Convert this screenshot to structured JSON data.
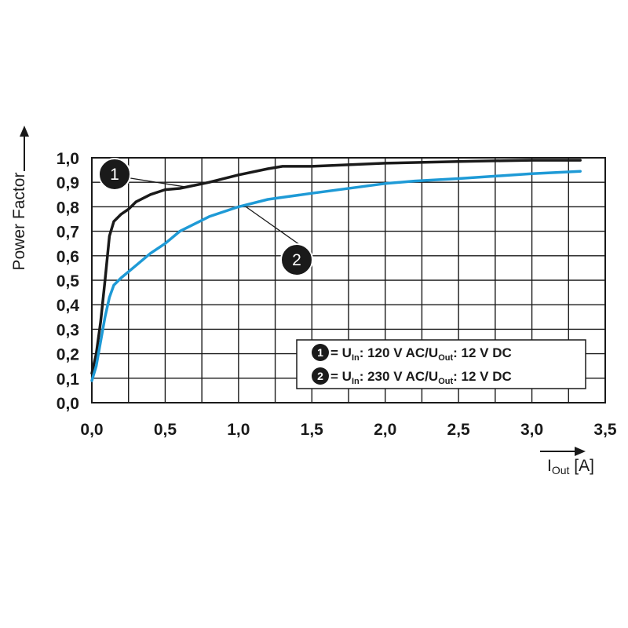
{
  "chart_data": {
    "type": "line",
    "ylabel": "Power Factor",
    "xlabel_main": "I",
    "xlabel_sub": "Out",
    "xlabel_unit": " [A]",
    "xlim": [
      0,
      3.5
    ],
    "ylim": [
      0,
      1.0
    ],
    "x_ticks": [
      "0,0",
      "0,5",
      "1,0",
      "1,5",
      "2,0",
      "2,5",
      "3,0",
      "3,5"
    ],
    "y_ticks": [
      "0,0",
      "0,1",
      "0,2",
      "0,3",
      "0,4",
      "0,5",
      "0,6",
      "0,7",
      "0,8",
      "0,9",
      "1,0"
    ],
    "grid": true,
    "series": [
      {
        "id": "1",
        "color": "#1a1a1a",
        "label_parts": {
          "pre": " = U",
          "sub1": "In",
          "mid": ": 120 V AC/U",
          "sub2": "Out",
          "post": ": 12 V DC"
        },
        "x": [
          0.0,
          0.03,
          0.06,
          0.09,
          0.12,
          0.15,
          0.2,
          0.25,
          0.3,
          0.4,
          0.5,
          0.6,
          0.8,
          1.0,
          1.2,
          1.3,
          1.5,
          2.0,
          2.5,
          3.0,
          3.33
        ],
        "y": [
          0.12,
          0.2,
          0.33,
          0.5,
          0.68,
          0.74,
          0.77,
          0.79,
          0.82,
          0.85,
          0.87,
          0.875,
          0.9,
          0.93,
          0.955,
          0.965,
          0.965,
          0.978,
          0.985,
          0.99,
          0.99
        ]
      },
      {
        "id": "2",
        "color": "#1e9ad6",
        "label_parts": {
          "pre": " = U",
          "sub1": "In",
          "mid": ": 230 V AC/U",
          "sub2": "Out",
          "post": ": 12 V DC"
        },
        "x": [
          0.0,
          0.03,
          0.06,
          0.09,
          0.12,
          0.15,
          0.2,
          0.3,
          0.4,
          0.5,
          0.6,
          0.8,
          1.0,
          1.2,
          1.5,
          2.0,
          2.2,
          2.5,
          3.0,
          3.33
        ],
        "y": [
          0.09,
          0.15,
          0.25,
          0.35,
          0.43,
          0.48,
          0.51,
          0.56,
          0.61,
          0.65,
          0.7,
          0.76,
          0.8,
          0.83,
          0.855,
          0.895,
          0.905,
          0.915,
          0.935,
          0.945
        ]
      }
    ],
    "annotations": [
      {
        "label": "1",
        "target_x": 0.65,
        "target_y": 0.88
      },
      {
        "label": "2",
        "target_x": 1.05,
        "target_y": 0.8
      }
    ],
    "legend_position": "bottom-right"
  }
}
